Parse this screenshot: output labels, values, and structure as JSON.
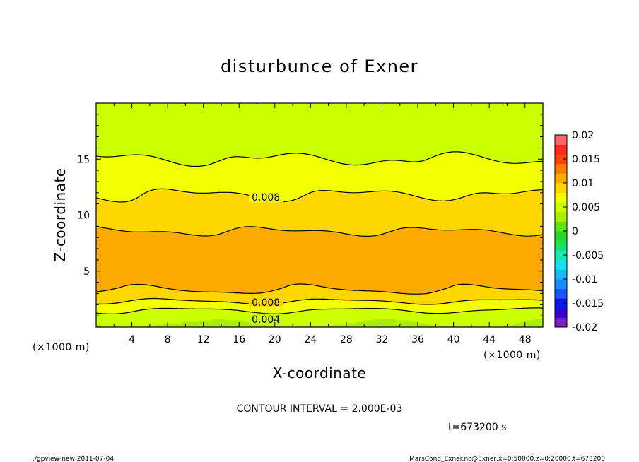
{
  "chart_data": {
    "type": "heatmap",
    "title": "disturbunce of Exner",
    "xlabel": "X-coordinate",
    "ylabel": "Z-coordinate",
    "x_unit": "(×1000 m)",
    "xlim": [
      0,
      50
    ],
    "ylim": [
      0,
      20
    ],
    "x_ticks": [
      "4",
      "8",
      "12",
      "16",
      "20",
      "24",
      "28",
      "32",
      "36",
      "40",
      "44",
      "48"
    ],
    "y_ticks": [
      "5",
      "10",
      "15"
    ],
    "x_tick_values": [
      4,
      8,
      12,
      16,
      20,
      24,
      28,
      32,
      36,
      40,
      44,
      48
    ],
    "y_tick_values": [
      5,
      10,
      15
    ],
    "colorbar": {
      "ticks": [
        "0.02",
        "0.015",
        "0.01",
        "0.005",
        "0",
        "-0.005",
        "-0.01",
        "-0.015",
        "-0.02"
      ],
      "tick_values": [
        0.02,
        0.015,
        0.01,
        0.005,
        0,
        -0.005,
        -0.01,
        -0.015,
        -0.02
      ],
      "min": -0.02,
      "max": 0.02,
      "step": 0.002,
      "colors": [
        "#7a1fbf",
        "#3300cc",
        "#0a1ae6",
        "#1f55ff",
        "#1a8cff",
        "#1ab8ff",
        "#1ae0ee",
        "#1ae8b0",
        "#1ae070",
        "#26d926",
        "#5ce61a",
        "#aaee00",
        "#ccff00",
        "#f2ff00",
        "#ffd700",
        "#ffaa00",
        "#ff7a00",
        "#ff4400",
        "#ff2a1f",
        "#ff6666"
      ]
    },
    "profile_z": [
      0,
      0.5,
      1,
      1.5,
      2,
      2.5,
      3,
      3.5,
      4,
      5,
      6,
      7,
      8,
      9,
      10,
      11,
      12,
      13,
      14,
      15,
      16,
      17,
      18,
      19,
      20
    ],
    "profile_values": [
      0.0035,
      0.0042,
      0.005,
      0.006,
      0.0073,
      0.0085,
      0.0095,
      0.0103,
      0.0108,
      0.0112,
      0.0114,
      0.0113,
      0.0105,
      0.0096,
      0.0091,
      0.0085,
      0.0079,
      0.0072,
      0.0065,
      0.006,
      0.0055,
      0.0052,
      0.0049,
      0.0047,
      0.0045
    ],
    "contour_labels": [
      {
        "text": "0.008",
        "x": 19,
        "z": 11.6
      },
      {
        "text": "0.008",
        "x": 19,
        "z": 2.2
      },
      {
        "text": "0.004",
        "x": 19,
        "z": 0.7
      }
    ],
    "contour_interval": "CONTOUR INTERVAL = 2.000E-03",
    "time_label": "t=673200 s",
    "footer_left": "./gpview-new   2011-07-04",
    "footer_right": "MarsCond_Exner.nc@Exner,x=0:50000,z=0:20000,t=673200"
  }
}
